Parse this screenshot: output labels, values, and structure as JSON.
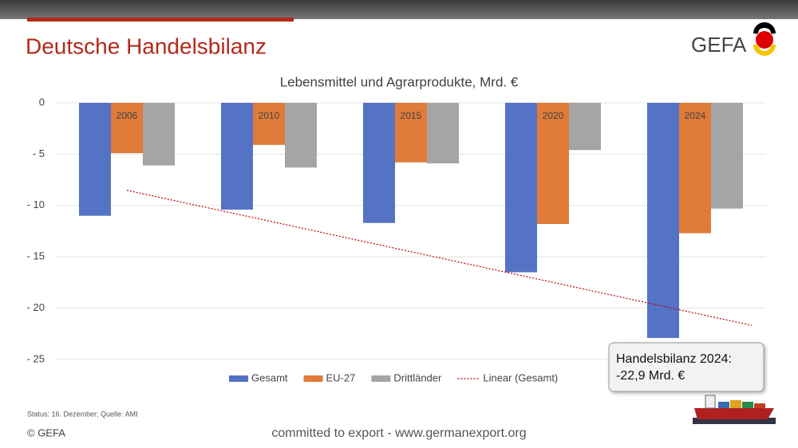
{
  "slide": {
    "title": "Deutsche Handelsbilanz",
    "logo": "GEFA",
    "source": "Status: 16. Dezember; Quelle: AMI",
    "copyright": "© GEFA",
    "tagline": "committed to export - www.germanexport.org"
  },
  "chart_data": {
    "type": "bar",
    "title": "Lebensmittel und Agrarprodukte, Mrd. €",
    "categories": [
      "2006",
      "2010",
      "2015",
      "2020",
      "2024"
    ],
    "series": [
      {
        "name": "Gesamt",
        "color": "#5573c4",
        "values": [
          -11,
          -10.4,
          -11.7,
          -16.5,
          -22.9
        ]
      },
      {
        "name": "EU-27",
        "color": "#e07b39",
        "values": [
          -4.9,
          -4.1,
          -5.8,
          -11.8,
          -12.7
        ]
      },
      {
        "name": "Drittländer",
        "color": "#a5a5a5",
        "values": [
          -6.1,
          -6.3,
          -5.9,
          -4.6,
          -10.3
        ]
      }
    ],
    "trendline": {
      "name": "Linear (Gesamt)",
      "color": "#c00000"
    },
    "ylim": [
      -25,
      0
    ],
    "yticks": [
      0,
      {
        "value": -5,
        "label": "- 5"
      },
      {
        "value": -10,
        "label": "- 10"
      },
      {
        "value": -15,
        "label": "- 15"
      },
      {
        "value": -20,
        "label": "- 20"
      },
      {
        "value": -25,
        "label": "- 25"
      }
    ],
    "grid": true,
    "legend": "bottom",
    "annotation": [
      "Handelsbilanz 2024:",
      "-22,9 Mrd. €"
    ]
  }
}
